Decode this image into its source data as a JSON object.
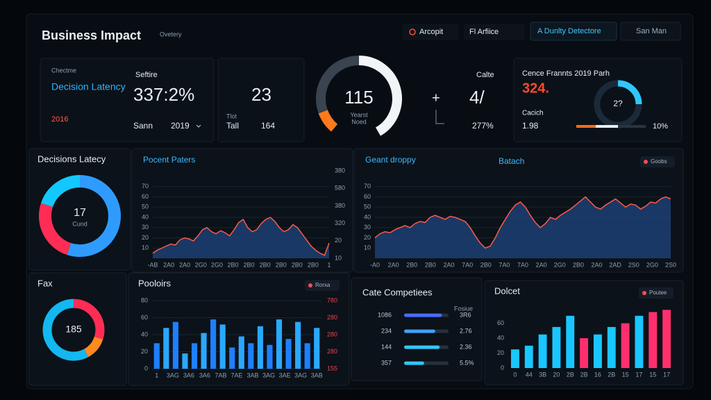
{
  "header": {
    "title": "Business Impact",
    "subtitle": "Ovetery",
    "buttons": [
      "Arcopit",
      "Fl Arfiice",
      "A Dunlty Detectore",
      "San Man"
    ]
  },
  "kpis": {
    "card1": {
      "caption": "Chectme",
      "title": "Decision Latency",
      "year": "2016",
      "label": "Seftire",
      "value": "337:2%",
      "footer_left": "Sann",
      "footer_right": "2019"
    },
    "card2": {
      "caption": "Tlot",
      "value": "23",
      "footer_left": "Tall",
      "footer_right": "164"
    },
    "gauge": {
      "value": "115",
      "caption": "Yearst",
      "sub": "Noed"
    },
    "card3": {
      "label": "Calte",
      "sign": "+",
      "value": "4/",
      "footer": "277%"
    },
    "card4": {
      "title": "Cence Frannts 2019 Parh",
      "value": "324.",
      "label": "Cacich",
      "footer_left": "1.98",
      "footer_right": "10%",
      "donut": "2?"
    }
  },
  "chart_data": [
    {
      "type": "pie",
      "title": "Decisions Latecy",
      "center_value": "17",
      "center_label": "Cund",
      "values": [
        55,
        25,
        20
      ],
      "colors": [
        "#2f9bff",
        "#ff2d55",
        "#12c8ff"
      ]
    },
    {
      "type": "area",
      "title": "Pocent Paters",
      "color": "#ff5a4a",
      "fill": "#1d3f73",
      "values": [
        5,
        8,
        10,
        12,
        14,
        13,
        18,
        20,
        19,
        17,
        22,
        28,
        30,
        26,
        24,
        27,
        25,
        22,
        28,
        35,
        38,
        30,
        26,
        28,
        34,
        38,
        40,
        36,
        30,
        26,
        28,
        33,
        30,
        24,
        18,
        12,
        8,
        5,
        3,
        15
      ],
      "ylim": [
        0,
        80
      ],
      "yticks": [
        10,
        20,
        30,
        40,
        50,
        60,
        70
      ],
      "grid": true,
      "xtick_labels": [
        "-AB",
        "2A0",
        "2A0",
        "2G0",
        "2G0",
        "2B0",
        "2B0",
        "2B0",
        "2B0",
        "2B0",
        "2B0",
        "1"
      ],
      "y2_labels": [
        "380",
        "580",
        "380",
        "320",
        "20",
        "10"
      ]
    },
    {
      "type": "area",
      "title": "Geant droppy",
      "subtitle": "Batach",
      "badge": "Goobs",
      "color": "#ff5a4a",
      "fill": "#1d3f73",
      "values": [
        20,
        24,
        26,
        25,
        28,
        30,
        32,
        30,
        34,
        36,
        35,
        40,
        42,
        40,
        38,
        41,
        40,
        38,
        36,
        30,
        22,
        15,
        10,
        12,
        20,
        30,
        38,
        46,
        52,
        55,
        50,
        42,
        35,
        30,
        34,
        40,
        38,
        42,
        45,
        48,
        52,
        56,
        60,
        55,
        50,
        48,
        52,
        55,
        58,
        54,
        50,
        53,
        52,
        48,
        51,
        55,
        54,
        58,
        60,
        58
      ],
      "ylim": [
        0,
        80
      ],
      "yticks": [
        10,
        20,
        30,
        40,
        50,
        60,
        70
      ],
      "grid": true,
      "xtick_labels": [
        "-A0",
        "2A0",
        "2B0",
        "2B0",
        "2A0",
        "7A0",
        "2B0",
        "7A0",
        "7A0",
        "2A0",
        "2G0",
        "2B0",
        "2A0",
        "2AD",
        "2S0",
        "2G0",
        "2S0"
      ]
    },
    {
      "type": "pie",
      "title": "Fax",
      "center_value": "185",
      "values": [
        30,
        12,
        58
      ],
      "colors": [
        "#ff2d55",
        "#ff8a1f",
        "#12b8ef"
      ]
    },
    {
      "type": "bar",
      "title": "Pooloirs",
      "badge": "Rorxa",
      "values": [
        30,
        48,
        55,
        18,
        30,
        42,
        58,
        52,
        25,
        38,
        30,
        50,
        28,
        58,
        35,
        55,
        30,
        48
      ],
      "colors": [
        "#1e7fff",
        "#2aa8ff",
        "#1e7fff",
        "#2aa8ff",
        "#1e7fff",
        "#2aa8ff",
        "#1e7fff",
        "#2aa8ff",
        "#1e7fff",
        "#2aa8ff",
        "#1e7fff",
        "#2aa8ff",
        "#1e7fff",
        "#2aa8ff",
        "#1e7fff",
        "#2aa8ff",
        "#1e7fff",
        "#2aa8ff"
      ],
      "ylim": [
        0,
        80
      ],
      "yticks": [
        0,
        20,
        40,
        60,
        80
      ],
      "grid": true,
      "xtick_labels": [
        "1",
        "3AG",
        "3A6",
        "3A6",
        "7AB",
        "7AE",
        "3AB",
        "3AG",
        "3AE",
        "3AG",
        "3AB"
      ],
      "y2_labels": [
        "780",
        "280",
        "280",
        "280",
        "155"
      ]
    },
    {
      "type": "hbar",
      "title": "Cate Competiees",
      "header": "Fosiue",
      "categories": [
        "1086",
        "234",
        "144",
        "357"
      ],
      "values": [
        85,
        70,
        80,
        45
      ],
      "right_labels": [
        "3R6",
        "2.76",
        "2.36",
        "5.5%"
      ],
      "colors": [
        "#4a6cff",
        "#3fa2ff",
        "#2ec8ff",
        "#2ec8ff"
      ],
      "xlim": [
        0,
        100
      ]
    },
    {
      "type": "bar",
      "title": "Dolcet",
      "badge": "Poutee",
      "values": [
        25,
        30,
        45,
        55,
        70,
        40,
        45,
        55,
        60,
        70,
        75,
        78
      ],
      "colors": [
        "#19c6ff",
        "#19c6ff",
        "#19c6ff",
        "#19c6ff",
        "#19c6ff",
        "#ff2f6e",
        "#19c6ff",
        "#19c6ff",
        "#ff2f6e",
        "#19c6ff",
        "#ff2f6e",
        "#ff2f6e"
      ],
      "ylim": [
        0,
        80
      ],
      "yticks": [
        0,
        20,
        40,
        60
      ],
      "grid": false,
      "xtick_labels": [
        "0",
        "44",
        "3B",
        "20",
        "2B",
        "2B",
        "16",
        "2B",
        "15",
        "17",
        "15",
        "17"
      ]
    }
  ]
}
